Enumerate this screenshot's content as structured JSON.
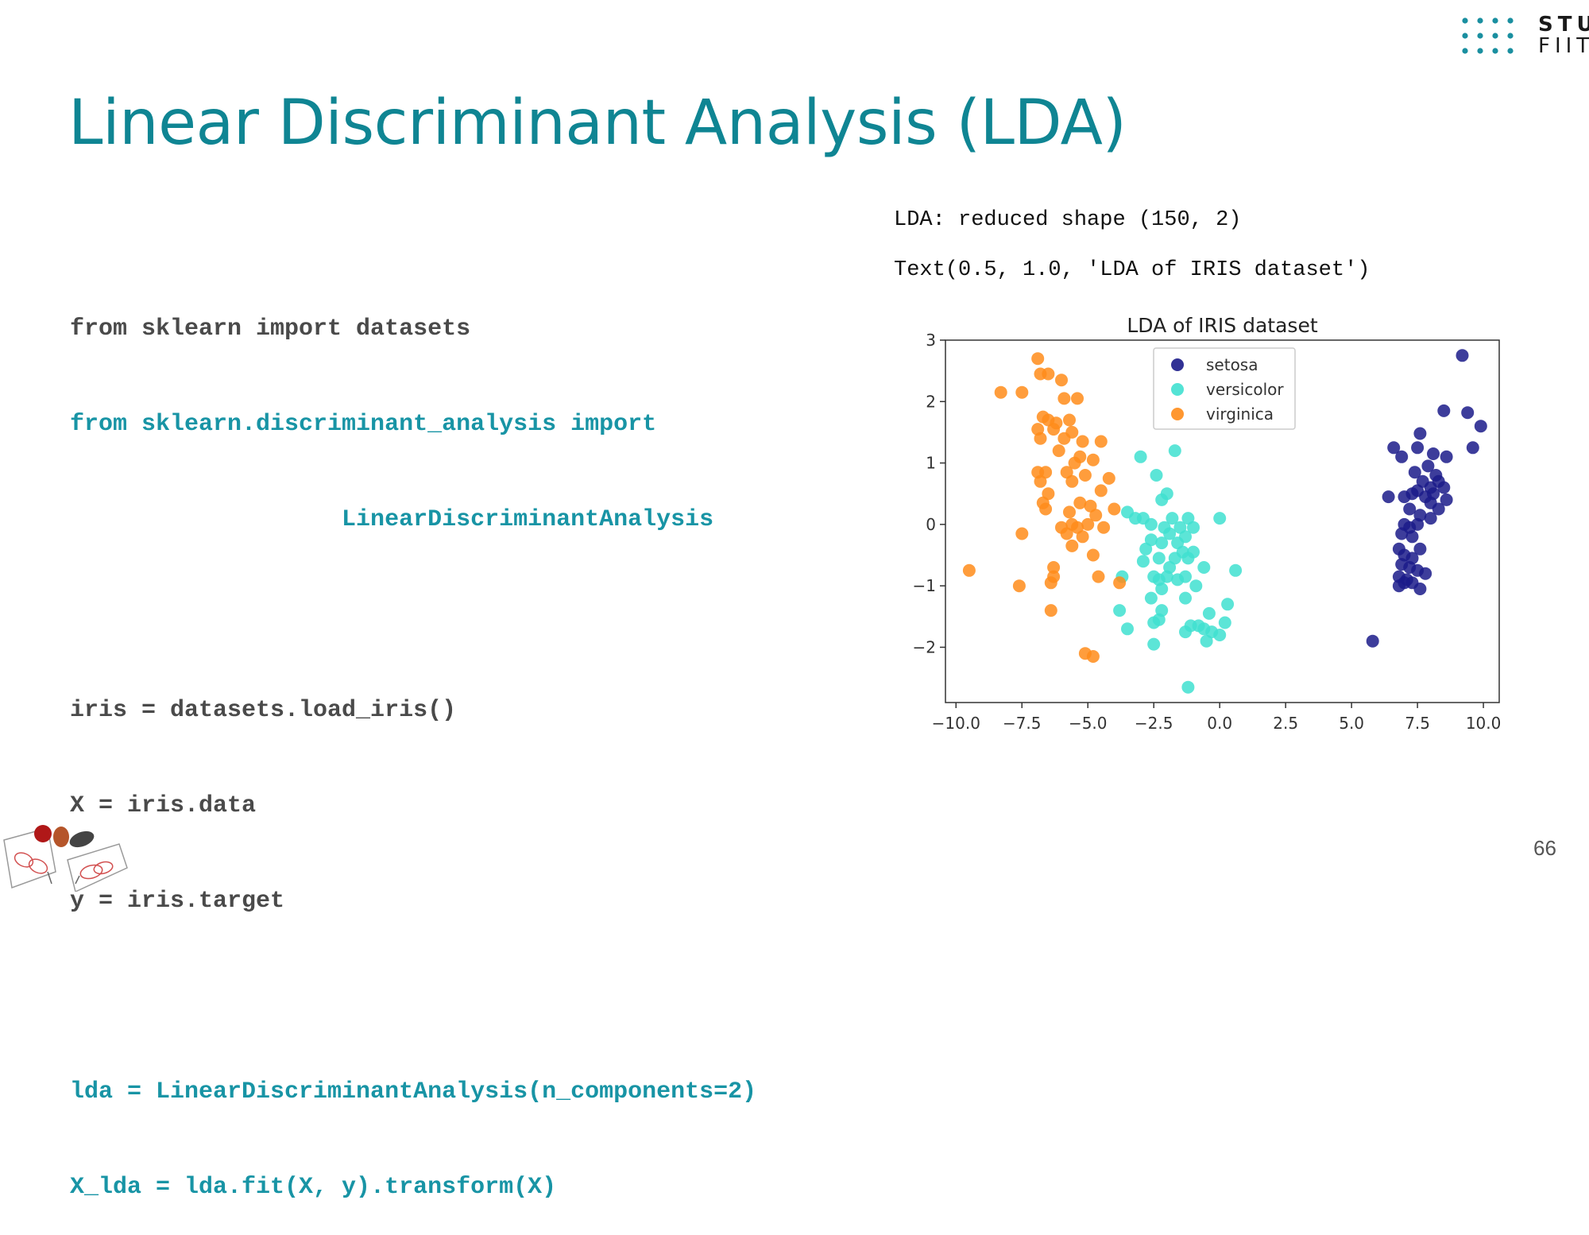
{
  "logo": {
    "line1": "STU",
    "line2": "FIIT",
    "color": "#1a8fa0"
  },
  "slide": {
    "title": "Linear Discriminant Analysis (LDA)",
    "page_number": "66"
  },
  "code": {
    "lines": [
      {
        "text": "from sklearn import datasets",
        "style": "gray"
      },
      {
        "text": "from sklearn.discriminant_analysis import",
        "style": "teal"
      },
      {
        "text": "                   LinearDiscriminantAnalysis",
        "style": "teal"
      },
      {
        "text": "",
        "style": "gray"
      },
      {
        "text": "iris = datasets.load_iris()",
        "style": "gray"
      },
      {
        "text": "X = iris.data",
        "style": "gray"
      },
      {
        "text": "y = iris.target",
        "style": "gray"
      },
      {
        "text": "",
        "style": "gray"
      },
      {
        "text": "lda = LinearDiscriminantAnalysis(n_components=2)",
        "style": "teal"
      },
      {
        "text": "X_lda = lda.fit(X, y).transform(X)",
        "style": "teal"
      }
    ]
  },
  "output": {
    "line1": "LDA: reduced shape (150, 2)",
    "line2": "Text(0.5, 1.0, 'LDA of IRIS dataset')"
  },
  "chart_data": {
    "type": "scatter",
    "title": "LDA of IRIS dataset",
    "xlim": [
      -10.4,
      10.6
    ],
    "ylim": [
      -2.9,
      3.0
    ],
    "xticks": [
      -10.0,
      -7.5,
      -5.0,
      -2.5,
      0.0,
      2.5,
      5.0,
      7.5,
      10.0
    ],
    "xtick_labels": [
      "−10.0",
      "−7.5",
      "−5.0",
      "−2.5",
      "0.0",
      "2.5",
      "5.0",
      "7.5",
      "10.0"
    ],
    "yticks": [
      -2,
      -1,
      0,
      1,
      2,
      3
    ],
    "ytick_labels": [
      "−2",
      "−1",
      "0",
      "1",
      "2",
      "3"
    ],
    "grid": false,
    "legend_position": "top-center",
    "series": [
      {
        "name": "setosa",
        "color": "#1b1b8a",
        "points": [
          [
            9.2,
            2.75
          ],
          [
            8.5,
            1.85
          ],
          [
            9.4,
            1.82
          ],
          [
            9.9,
            1.6
          ],
          [
            7.6,
            1.48
          ],
          [
            9.6,
            1.25
          ],
          [
            6.6,
            1.25
          ],
          [
            7.5,
            1.25
          ],
          [
            6.9,
            1.1
          ],
          [
            8.1,
            1.15
          ],
          [
            8.6,
            1.1
          ],
          [
            7.9,
            0.95
          ],
          [
            7.4,
            0.85
          ],
          [
            8.2,
            0.8
          ],
          [
            7.7,
            0.7
          ],
          [
            8.3,
            0.7
          ],
          [
            8.0,
            0.6
          ],
          [
            8.5,
            0.6
          ],
          [
            7.5,
            0.55
          ],
          [
            7.3,
            0.5
          ],
          [
            8.1,
            0.5
          ],
          [
            6.4,
            0.45
          ],
          [
            7.0,
            0.45
          ],
          [
            7.8,
            0.45
          ],
          [
            8.6,
            0.4
          ],
          [
            8.0,
            0.35
          ],
          [
            7.2,
            0.25
          ],
          [
            8.3,
            0.25
          ],
          [
            7.6,
            0.15
          ],
          [
            8.0,
            0.1
          ],
          [
            7.0,
            0.0
          ],
          [
            7.5,
            0.0
          ],
          [
            7.2,
            -0.05
          ],
          [
            6.9,
            -0.15
          ],
          [
            7.3,
            -0.2
          ],
          [
            6.8,
            -0.4
          ],
          [
            7.6,
            -0.4
          ],
          [
            7.0,
            -0.5
          ],
          [
            7.3,
            -0.55
          ],
          [
            6.9,
            -0.65
          ],
          [
            7.2,
            -0.7
          ],
          [
            7.5,
            -0.75
          ],
          [
            6.8,
            -0.85
          ],
          [
            7.1,
            -0.9
          ],
          [
            7.8,
            -0.8
          ],
          [
            7.3,
            -0.95
          ],
          [
            6.8,
            -1.0
          ],
          [
            7.6,
            -1.05
          ],
          [
            7.0,
            -0.95
          ],
          [
            5.8,
            -1.9
          ]
        ]
      },
      {
        "name": "versicolor",
        "color": "#40e0d0",
        "points": [
          [
            -1.7,
            1.2
          ],
          [
            -3.0,
            1.1
          ],
          [
            -2.4,
            0.8
          ],
          [
            -2.0,
            0.5
          ],
          [
            -2.2,
            0.4
          ],
          [
            -3.5,
            0.2
          ],
          [
            -3.2,
            0.1
          ],
          [
            -2.9,
            0.1
          ],
          [
            -1.8,
            0.1
          ],
          [
            -1.2,
            0.1
          ],
          [
            0.0,
            0.1
          ],
          [
            -2.6,
            0.0
          ],
          [
            -2.1,
            -0.05
          ],
          [
            -1.5,
            -0.05
          ],
          [
            -1.0,
            -0.05
          ],
          [
            -1.9,
            -0.15
          ],
          [
            -1.3,
            -0.2
          ],
          [
            -2.6,
            -0.25
          ],
          [
            -2.2,
            -0.3
          ],
          [
            -1.6,
            -0.3
          ],
          [
            -2.8,
            -0.4
          ],
          [
            -1.4,
            -0.45
          ],
          [
            -1.0,
            -0.45
          ],
          [
            -2.3,
            -0.55
          ],
          [
            -1.7,
            -0.55
          ],
          [
            -1.2,
            -0.55
          ],
          [
            -2.9,
            -0.6
          ],
          [
            -1.9,
            -0.7
          ],
          [
            -0.6,
            -0.7
          ],
          [
            0.6,
            -0.75
          ],
          [
            -2.5,
            -0.85
          ],
          [
            -2.0,
            -0.85
          ],
          [
            -1.3,
            -0.85
          ],
          [
            -3.7,
            -0.85
          ],
          [
            -2.3,
            -0.9
          ],
          [
            -1.6,
            -0.9
          ],
          [
            -2.2,
            -1.05
          ],
          [
            -0.9,
            -1.0
          ],
          [
            -2.6,
            -1.2
          ],
          [
            -1.3,
            -1.2
          ],
          [
            0.3,
            -1.3
          ],
          [
            -3.8,
            -1.4
          ],
          [
            -2.2,
            -1.4
          ],
          [
            -0.4,
            -1.45
          ],
          [
            -2.3,
            -1.55
          ],
          [
            -2.5,
            -1.6
          ],
          [
            -1.1,
            -1.65
          ],
          [
            -0.8,
            -1.65
          ],
          [
            0.2,
            -1.6
          ],
          [
            -3.5,
            -1.7
          ],
          [
            -0.6,
            -1.7
          ],
          [
            -1.3,
            -1.75
          ],
          [
            -0.3,
            -1.75
          ],
          [
            0.0,
            -1.8
          ],
          [
            -0.5,
            -1.9
          ],
          [
            -2.5,
            -1.95
          ],
          [
            -1.2,
            -2.65
          ]
        ]
      },
      {
        "name": "virginica",
        "color": "#ff8c1a",
        "points": [
          [
            -6.9,
            2.7
          ],
          [
            -6.8,
            2.45
          ],
          [
            -6.5,
            2.45
          ],
          [
            -6.0,
            2.35
          ],
          [
            -8.3,
            2.15
          ],
          [
            -7.5,
            2.15
          ],
          [
            -5.9,
            2.05
          ],
          [
            -5.4,
            2.05
          ],
          [
            -6.7,
            1.75
          ],
          [
            -6.5,
            1.7
          ],
          [
            -6.2,
            1.65
          ],
          [
            -5.7,
            1.7
          ],
          [
            -6.9,
            1.55
          ],
          [
            -6.3,
            1.55
          ],
          [
            -5.6,
            1.5
          ],
          [
            -6.8,
            1.4
          ],
          [
            -5.9,
            1.4
          ],
          [
            -5.2,
            1.35
          ],
          [
            -4.5,
            1.35
          ],
          [
            -6.1,
            1.2
          ],
          [
            -5.3,
            1.1
          ],
          [
            -4.8,
            1.05
          ],
          [
            -5.5,
            1.0
          ],
          [
            -6.9,
            0.85
          ],
          [
            -6.6,
            0.85
          ],
          [
            -5.8,
            0.85
          ],
          [
            -5.1,
            0.8
          ],
          [
            -6.8,
            0.7
          ],
          [
            -5.6,
            0.7
          ],
          [
            -4.2,
            0.75
          ],
          [
            -6.5,
            0.5
          ],
          [
            -4.5,
            0.55
          ],
          [
            -6.7,
            0.35
          ],
          [
            -5.3,
            0.35
          ],
          [
            -4.9,
            0.3
          ],
          [
            -4.0,
            0.25
          ],
          [
            -6.6,
            0.25
          ],
          [
            -5.7,
            0.2
          ],
          [
            -4.7,
            0.15
          ],
          [
            -5.0,
            0.0
          ],
          [
            -5.6,
            0.0
          ],
          [
            -6.0,
            -0.05
          ],
          [
            -5.4,
            -0.05
          ],
          [
            -4.4,
            -0.05
          ],
          [
            -7.5,
            -0.15
          ],
          [
            -5.8,
            -0.15
          ],
          [
            -5.2,
            -0.2
          ],
          [
            -5.6,
            -0.35
          ],
          [
            -4.8,
            -0.5
          ],
          [
            -6.3,
            -0.7
          ],
          [
            -9.5,
            -0.75
          ],
          [
            -6.3,
            -0.85
          ],
          [
            -4.6,
            -0.85
          ],
          [
            -3.8,
            -0.95
          ],
          [
            -7.6,
            -1.0
          ],
          [
            -6.4,
            -0.95
          ],
          [
            -6.4,
            -1.4
          ],
          [
            -5.1,
            -2.1
          ],
          [
            -4.8,
            -2.15
          ]
        ]
      }
    ]
  }
}
